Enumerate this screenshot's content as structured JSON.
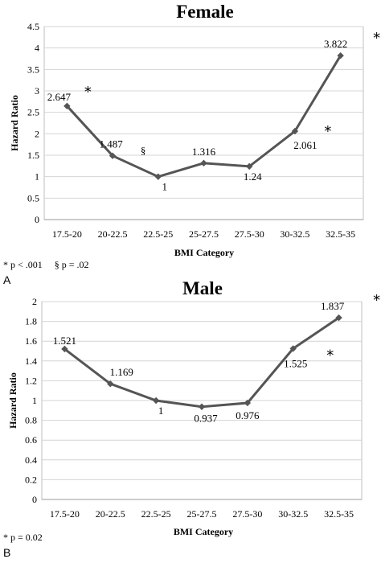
{
  "chart_data": [
    {
      "panel": "A",
      "type": "line",
      "title": "Female",
      "xlabel": "BMI Category",
      "ylabel": "Hazard Ratio",
      "categories": [
        "17.5-20",
        "20-22.5",
        "22.5-25",
        "25-27.5",
        "27.5-30",
        "30-32.5",
        "32.5-35"
      ],
      "series": [
        {
          "values": [
            2.647,
            1.487,
            1,
            1.316,
            1.24,
            2.061,
            3.822
          ]
        }
      ],
      "data_labels": [
        "2.647",
        "1.487",
        "1",
        "1.316",
        "1.24",
        "2.061",
        "3.822"
      ],
      "significance": [
        "*",
        "§",
        "",
        "",
        "",
        "*",
        "*"
      ],
      "ylim": [
        0,
        4.5
      ],
      "yticks": [
        0,
        0.5,
        1,
        1.5,
        2,
        2.5,
        3,
        3.5,
        4,
        4.5
      ],
      "ytick_labels": [
        "0",
        "0.5",
        "1",
        "1.5",
        "2",
        "2.5",
        "3",
        "3.5",
        "4",
        "4.5"
      ],
      "grid": true,
      "footnote": "* p < .001     § p = .02"
    },
    {
      "panel": "B",
      "type": "line",
      "title": "Male",
      "xlabel": "BMI Category",
      "ylabel": "Hazard Ratio",
      "categories": [
        "17.5-20",
        "20-22.5",
        "22.5-25",
        "25-27.5",
        "27.5-30",
        "30-32.5",
        "32.5-35"
      ],
      "series": [
        {
          "values": [
            1.521,
            1.169,
            1,
            0.937,
            0.976,
            1.525,
            1.837
          ]
        }
      ],
      "data_labels": [
        "1.521",
        "1.169",
        "1",
        "0.937",
        "0.976",
        "1.525",
        "1.837"
      ],
      "significance": [
        "",
        "",
        "",
        "",
        "",
        "*",
        "*"
      ],
      "ylim": [
        0,
        2
      ],
      "yticks": [
        0,
        0.2,
        0.4,
        0.6,
        0.8,
        1,
        1.2,
        1.4,
        1.6,
        1.8,
        2
      ],
      "ytick_labels": [
        "0",
        "0.2",
        "0.4",
        "0.6",
        "0.8",
        "1",
        "1.2",
        "1.4",
        "1.6",
        "1.8",
        "2"
      ],
      "grid": true,
      "footnote": "* p = 0.02"
    }
  ],
  "colors": {
    "line": "#555555",
    "grid": "#d4d4d4",
    "frame": "#bfbfbf"
  }
}
